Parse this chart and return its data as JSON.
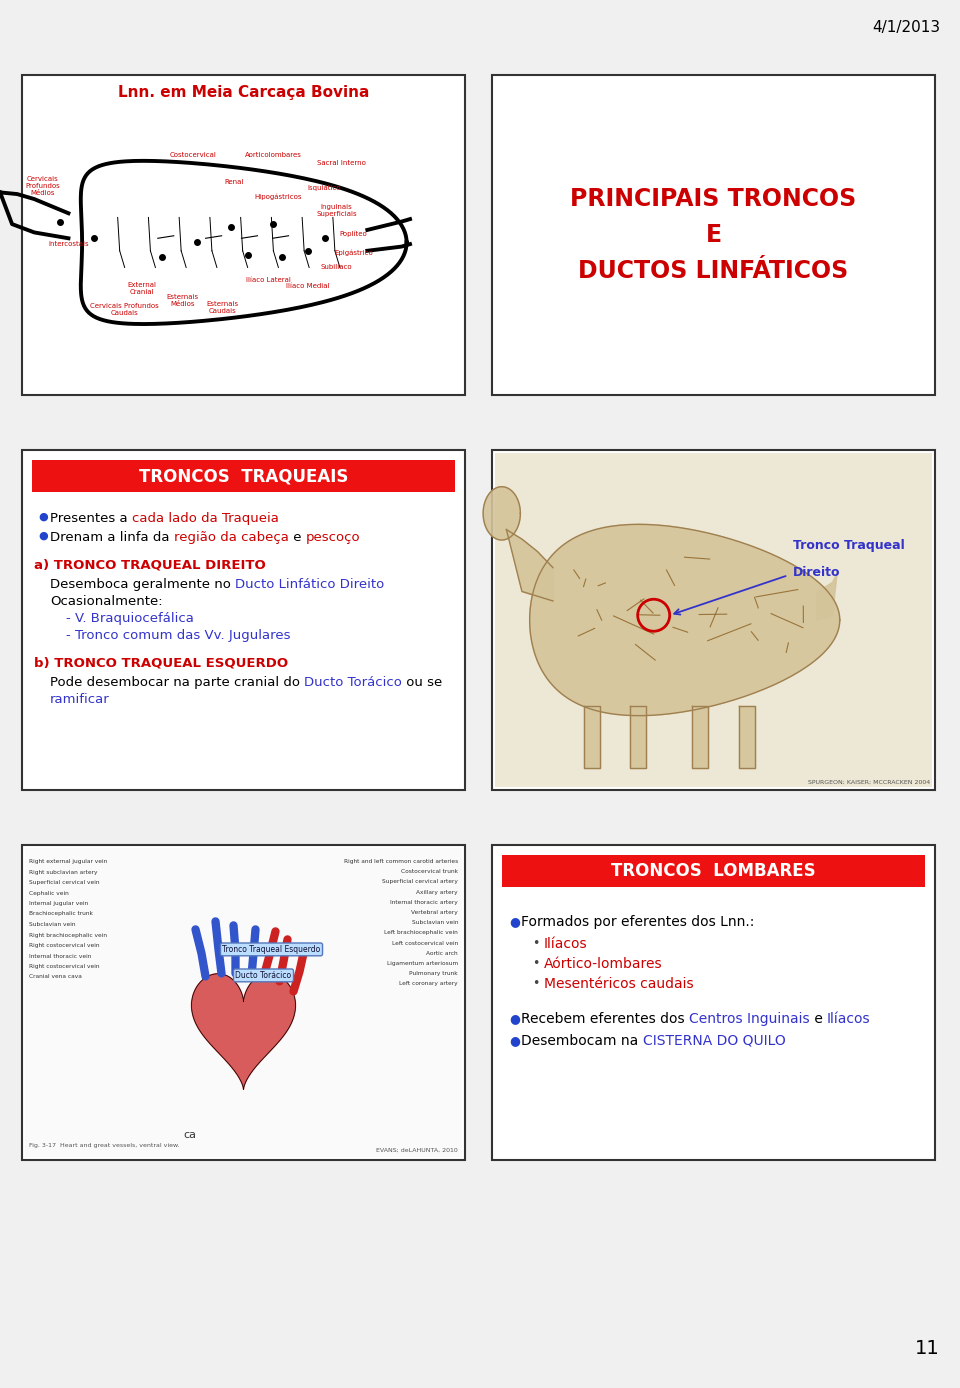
{
  "bg_color": "#f0f0f0",
  "date_text": "4/1/2013",
  "page_number": "11",
  "red_banner_color": "#ee1111",
  "red_banner_text_color": "#ffffff",
  "panel1": {
    "title": "Lnn. em Meia Carcaça Bovina",
    "title_color": "#cc0000"
  },
  "panel2": {
    "lines": [
      "PRINCIPAIS TRONCOS",
      "E",
      "DUCTOS LINFÁTICOS"
    ],
    "text_color": "#cc0000"
  },
  "panel3": {
    "banner_text": "TRONCOS  TRAQUEAIS",
    "bullets": [
      {
        "text_parts": [
          {
            "text": "Presentes a ",
            "color": "#000000"
          },
          {
            "text": "cada lado da Traqueia",
            "color": "#cc0000"
          }
        ]
      },
      {
        "text_parts": [
          {
            "text": "Drenam a linfa da ",
            "color": "#000000"
          },
          {
            "text": "região da cabeça",
            "color": "#cc0000"
          },
          {
            "text": " e ",
            "color": "#000000"
          },
          {
            "text": "pescoço",
            "color": "#cc0000"
          }
        ]
      }
    ],
    "section_a_title": "a) TRONCO TRAQUEAL DIREITO",
    "section_a_title_color": "#cc0000",
    "section_a_lines": [
      {
        "indent": false,
        "text_parts": [
          {
            "text": "Desemboca geralmente no ",
            "color": "#000000"
          },
          {
            "text": "Ducto Linfático Direito",
            "color": "#3333cc"
          }
        ]
      },
      {
        "indent": false,
        "text_parts": [
          {
            "text": "Ocasionalmente:",
            "color": "#000000"
          }
        ]
      },
      {
        "indent": true,
        "text_parts": [
          {
            "text": "- V. Braquiocefálica",
            "color": "#3333cc"
          }
        ]
      },
      {
        "indent": true,
        "text_parts": [
          {
            "text": "- Tronco comum das Vv. Jugulares",
            "color": "#3333cc"
          }
        ]
      }
    ],
    "section_b_title": "b) TRONCO TRAQUEAL ESQUERDO",
    "section_b_title_color": "#cc0000",
    "section_b_lines": [
      {
        "text_parts": [
          {
            "text": "Pode desembocar na parte cranial do ",
            "color": "#000000"
          },
          {
            "text": "Ducto Torácico",
            "color": "#3333cc"
          },
          {
            "text": " ou se",
            "color": "#000000"
          }
        ]
      },
      {
        "text_parts": [
          {
            "text": "ramificar",
            "color": "#3333cc"
          }
        ]
      }
    ]
  },
  "panel4": {
    "tronco_label_line1": "Tronco Traqueal",
    "tronco_label_line2": "Direito",
    "label_color": "#3333cc",
    "circle_color": "#cc0000",
    "credit": "SPURGEON; KAISER; MCCRACKEN 2004"
  },
  "panel5": {
    "credit": "EVANS; deLAHUNTA, 2010",
    "fig_caption": "Fig. 3-17  Heart and great vessels, ventral view.",
    "ca_label": "ca"
  },
  "panel6": {
    "banner_text": "TRONCOS  LOMBARES",
    "bullet1_text": "Formados por eferentes dos Lnn.:",
    "bullet1_color": "#000000",
    "sub_bullets": [
      {
        "text": "Ilíacos",
        "color": "#cc0000"
      },
      {
        "text": "Aórtico-lombares",
        "color": "#cc0000"
      },
      {
        "text": "Mesentéricos caudais",
        "color": "#cc0000"
      }
    ],
    "bullet2_parts": [
      {
        "text": "Recebem eferentes dos ",
        "color": "#000000"
      },
      {
        "text": "Centros Inguinais",
        "color": "#3333cc"
      },
      {
        "text": " e ",
        "color": "#000000"
      },
      {
        "text": "Ilíacos",
        "color": "#3333cc"
      }
    ],
    "bullet3_parts": [
      {
        "text": "Desembocam na ",
        "color": "#000000"
      },
      {
        "text": "CISTERNA DO QUILO",
        "color": "#3333cc"
      }
    ]
  }
}
